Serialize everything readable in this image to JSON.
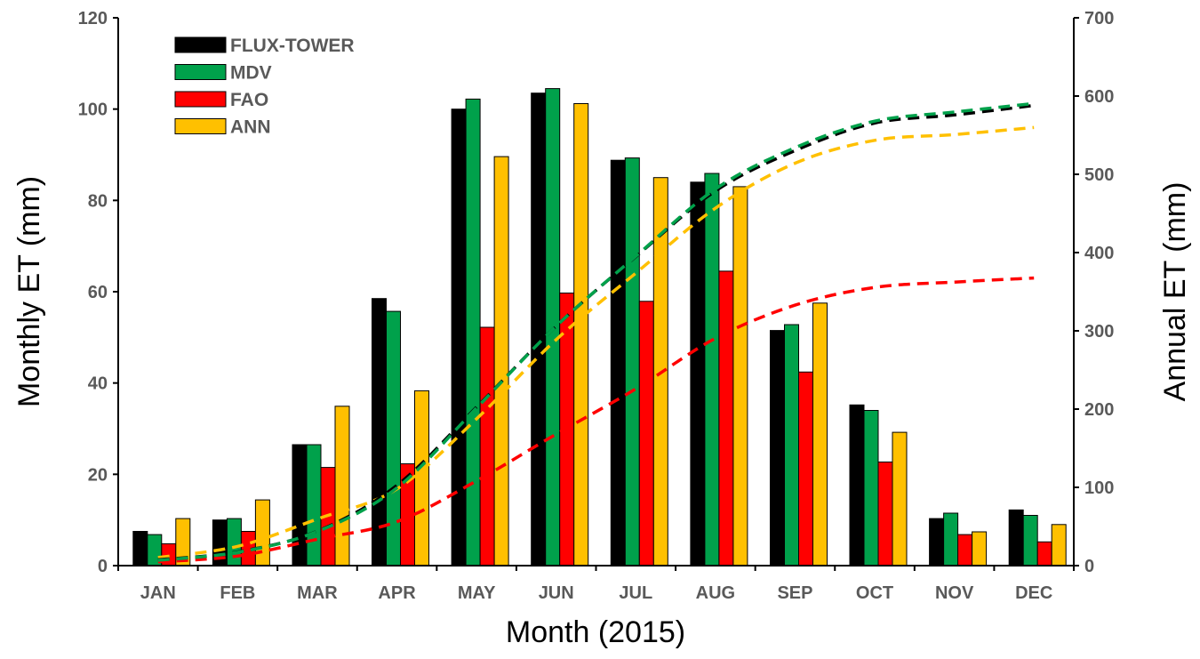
{
  "chart_data": {
    "type": "bar",
    "categories": [
      "JAN",
      "FEB",
      "MAR",
      "APR",
      "MAY",
      "JUN",
      "JUL",
      "AUG",
      "SEP",
      "OCT",
      "NOV",
      "DEC"
    ],
    "xlabel": "Month (2015)",
    "ylabel": "Monthly ET (mm)",
    "y2label": "Annual ET (mm)",
    "ylim": [
      0,
      120
    ],
    "yticks": [
      0,
      20,
      40,
      60,
      80,
      100,
      120
    ],
    "y2lim": [
      0,
      700
    ],
    "y2ticks": [
      0,
      100,
      200,
      300,
      400,
      500,
      600,
      700
    ],
    "grid": false,
    "legend_position": "top-left",
    "series": [
      {
        "name": "FLUX-TOWER",
        "color": "#000000",
        "values": [
          7.5,
          10,
          26.5,
          58.5,
          100,
          103.5,
          88.8,
          84,
          51.5,
          35.2,
          10.3,
          12.2
        ]
      },
      {
        "name": "MDV",
        "color": "#00A14B",
        "values": [
          6.8,
          10.3,
          26.5,
          55.7,
          102.2,
          104.5,
          89.3,
          85.9,
          52.8,
          34,
          11.5,
          11
        ]
      },
      {
        "name": "FAO",
        "color": "#FF0000",
        "values": [
          4.8,
          7.5,
          21.5,
          22.3,
          52.2,
          59.7,
          57.9,
          64.5,
          42.4,
          22.7,
          6.8,
          5.2
        ]
      },
      {
        "name": "ANN",
        "color": "#FFC000",
        "values": [
          10.3,
          14.4,
          34.9,
          38.3,
          89.6,
          101.2,
          85,
          83,
          57.5,
          29.2,
          7.4,
          9
        ]
      }
    ],
    "cumulative_series": [
      {
        "name": "FLUX-TOWER",
        "color": "#000000",
        "values": [
          7.5,
          17.5,
          44,
          102.5,
          202.5,
          306,
          394.8,
          478.8,
          530.3,
          565.5,
          575.8,
          588
        ]
      },
      {
        "name": "MDV",
        "color": "#00A14B",
        "values": [
          6.8,
          17.1,
          43.6,
          99.3,
          201.5,
          306,
          395.3,
          481.2,
          534,
          568,
          579.5,
          590.5
        ]
      },
      {
        "name": "FAO",
        "color": "#FF0000",
        "values": [
          4.8,
          12.3,
          33.8,
          56.1,
          108.3,
          168,
          225.9,
          290.4,
          332.8,
          355.5,
          362.3,
          367.5
        ]
      },
      {
        "name": "ANN",
        "color": "#FFC000",
        "values": [
          10.3,
          24.7,
          59.6,
          97.9,
          187.5,
          288.7,
          373.7,
          456.7,
          514.2,
          543.4,
          550.8,
          559.8
        ]
      }
    ]
  }
}
